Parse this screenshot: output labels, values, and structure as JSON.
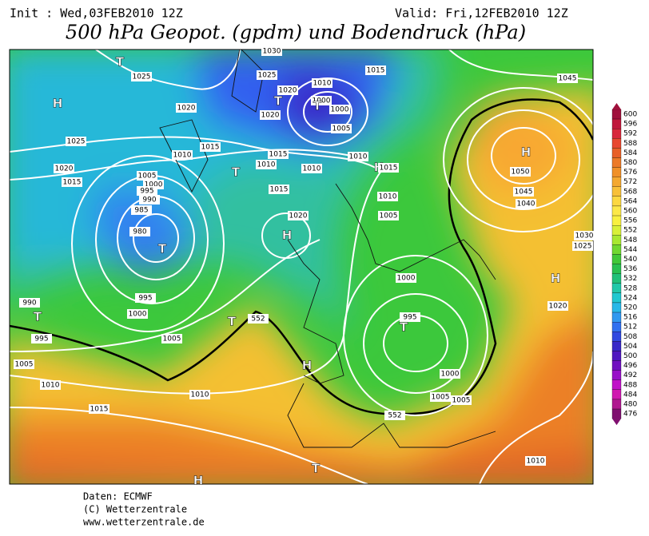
{
  "header": {
    "init": "Init : Wed,03FEB2010 12Z",
    "valid": "Valid: Fri,12FEB2010 12Z",
    "title": "500 hPa Geopot. (gpdm) und Bodendruck (hPa)"
  },
  "map": {
    "labels": [
      "T",
      "1025",
      "H",
      "1020",
      "1025",
      "1020",
      "1015",
      "1005",
      "1000",
      "995",
      "990",
      "985",
      "980",
      "T",
      "995",
      "1000",
      "1005",
      "990",
      "T",
      "995",
      "1005",
      "1010",
      "1015",
      "1010",
      "T",
      "552",
      "H",
      "T",
      "1020",
      "1025",
      "1020",
      "1010",
      "1000",
      "T",
      "1000",
      "1005",
      "1015",
      "1010",
      "1015",
      "1010",
      "T",
      "1010",
      "1015",
      "1020",
      "H",
      "1010",
      "H",
      "1015",
      "1010",
      "1005",
      "1000",
      "995",
      "T",
      "1000",
      "1005",
      "1005",
      "552",
      "1010",
      "T",
      "H",
      "H",
      "1050",
      "1045",
      "1040",
      "1045",
      "1030",
      "1025",
      "H",
      "1020",
      "1015",
      "1030"
    ]
  },
  "colorbar": {
    "values": [
      600,
      596,
      592,
      588,
      584,
      580,
      576,
      572,
      568,
      564,
      560,
      556,
      552,
      548,
      544,
      540,
      536,
      532,
      528,
      524,
      520,
      516,
      512,
      508,
      504,
      500,
      496,
      492,
      488,
      484,
      480,
      476
    ],
    "colors": [
      "#a0103c",
      "#c0183c",
      "#d8283c",
      "#e84830",
      "#e86028",
      "#ec7a28",
      "#f09028",
      "#f4a830",
      "#f8c038",
      "#fcd840",
      "#fce848",
      "#f8f040",
      "#d8f038",
      "#a8e830",
      "#70d830",
      "#40c838",
      "#28c050",
      "#20c078",
      "#20c8a8",
      "#20c8d0",
      "#28b8e8",
      "#3098f0",
      "#3070f0",
      "#3048e0",
      "#3828c8",
      "#5018c0",
      "#7010c0",
      "#9810c8",
      "#c010c8",
      "#d018b0",
      "#b01890",
      "#801070"
    ]
  },
  "footer": {
    "lines": [
      "Daten: ECMWF",
      "(C) Wetterzentrale",
      "www.wetterzentrale.de"
    ]
  }
}
